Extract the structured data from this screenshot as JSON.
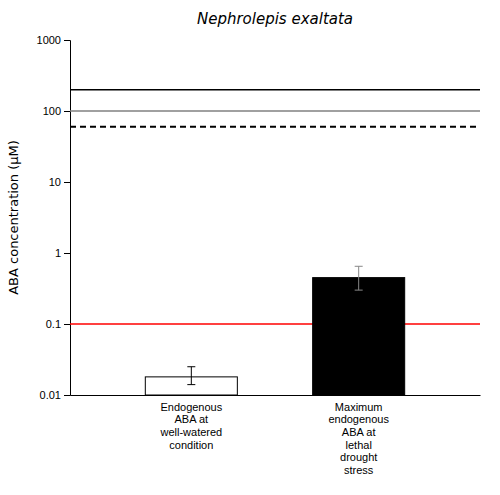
{
  "chart_data": {
    "type": "bar",
    "title": "Nephrolepis exaltata",
    "y_label": "ABA concentration (μM)",
    "categories": [
      "Endogenous\nABA at\nwell-watered\ncondition",
      "Maximum\nendogenous\nABA at\nlethal\ndrought\nstress"
    ],
    "values": [
      0.018,
      0.45
    ],
    "errors_minus": [
      0.004,
      0.15
    ],
    "errors_plus": [
      0.007,
      0.2
    ],
    "colors": [
      "white",
      "black"
    ],
    "log": "y",
    "ylim": [
      0.01,
      1000
    ],
    "yticks": [
      0.01,
      0.1,
      1,
      10,
      100,
      1000
    ],
    "hlines": [
      {
        "value": 200,
        "color": "black",
        "line_style": "solid"
      },
      {
        "value": 100,
        "color": "gray",
        "line_style": "solid"
      },
      {
        "value": 60,
        "color": "black",
        "line_style": "dashed"
      },
      {
        "value": 0.1,
        "color": "red",
        "line_style": "solid"
      }
    ]
  }
}
